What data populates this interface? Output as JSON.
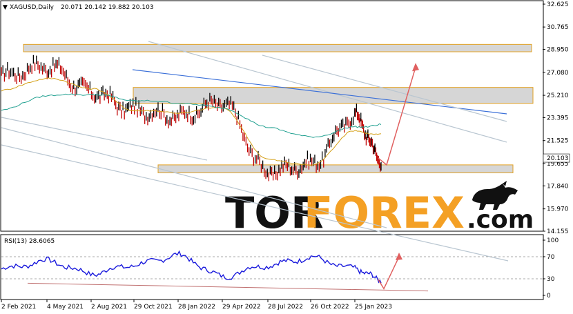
{
  "header": {
    "symbol": "XAGUSD,Daily",
    "ohlc": "20.071 20.142 19.882 20.103"
  },
  "watermark": {
    "part1": "TOR",
    "part2": "FOREX",
    "part3": ".com"
  },
  "chart_data": [
    {
      "type": "line",
      "title": "XAGUSD,Daily",
      "subtitle": "20.071 20.142 19.882 20.103",
      "price_label": "20.103",
      "y_ticks": [
        "32.625",
        "30.765",
        "28.950",
        "27.080",
        "25.210",
        "23.395",
        "21.525",
        "19.655",
        "17.840",
        "15.970",
        "14.155"
      ],
      "x_ticks": [
        "2 Feb 2021",
        "4 May 2021",
        "2 Aug 2021",
        "29 Oct 2021",
        "28 Jan 2022",
        "29 Apr 2022",
        "28 Jul 2022",
        "26 Oct 2022",
        "25 Jan 2023"
      ],
      "ylim": [
        14.155,
        32.625
      ],
      "grid": false,
      "series": [
        {
          "role": "price",
          "color": "#000000",
          "x": [
            "2 Feb 2021",
            "4 May 2021",
            "2 Aug 2021",
            "29 Oct 2021",
            "28 Jan 2022",
            "29 Apr 2022",
            "28 Jul 2022",
            "26 Oct 2022",
            "25 Jan 2023",
            "21 Feb 2023"
          ],
          "values": [
            26.8,
            27.6,
            25.5,
            24.0,
            23.5,
            24.6,
            19.0,
            19.6,
            23.5,
            20.1
          ]
        },
        {
          "role": "fast-ma",
          "color": "#d4a017",
          "x": [
            "2 Feb 2021",
            "4 May 2021",
            "2 Aug 2021",
            "29 Oct 2021",
            "28 Jan 2022",
            "29 Apr 2022",
            "28 Jul 2022",
            "26 Oct 2022",
            "25 Jan 2023",
            "21 Feb 2023"
          ],
          "values": [
            25.6,
            26.6,
            25.8,
            24.0,
            23.8,
            24.2,
            20.0,
            19.5,
            22.3,
            22.0
          ]
        },
        {
          "role": "slow-ma",
          "color": "#20a090",
          "x": [
            "2 Feb 2021",
            "4 May 2021",
            "2 Aug 2021",
            "29 Oct 2021",
            "28 Jan 2022",
            "29 Apr 2022",
            "28 Jul 2022",
            "26 Oct 2022",
            "25 Jan 2023",
            "21 Feb 2023"
          ],
          "values": [
            24.0,
            25.2,
            25.3,
            24.8,
            24.6,
            24.2,
            22.6,
            21.8,
            22.6,
            22.8
          ]
        }
      ],
      "zones": [
        {
          "from": 28.75,
          "to": 29.35
        },
        {
          "from": 24.55,
          "to": 25.85
        },
        {
          "from": 18.9,
          "to": 19.55
        }
      ],
      "forecast": {
        "from": 20.103,
        "dip": 19.55,
        "target": 27.5,
        "color": "#e06060"
      }
    },
    {
      "type": "line",
      "title": "RSI(13) 28.6065",
      "y_ticks": [
        "100",
        "70",
        "30",
        "0"
      ],
      "ylim": [
        0,
        100
      ],
      "levels": [
        70,
        30
      ],
      "series": [
        {
          "color": "#1a1adc",
          "x": [
            "2 Feb 2021",
            "4 May 2021",
            "2 Aug 2021",
            "29 Oct 2021",
            "28 Jan 2022",
            "29 Apr 2022",
            "28 Jul 2022",
            "26 Oct 2022",
            "25 Jan 2023",
            "21 Feb 2023"
          ],
          "values": [
            48,
            62,
            40,
            55,
            72,
            35,
            55,
            68,
            48,
            28.6
          ]
        }
      ],
      "forecast": {
        "from": 28.6,
        "target": 70,
        "color": "#e06060"
      }
    }
  ]
}
